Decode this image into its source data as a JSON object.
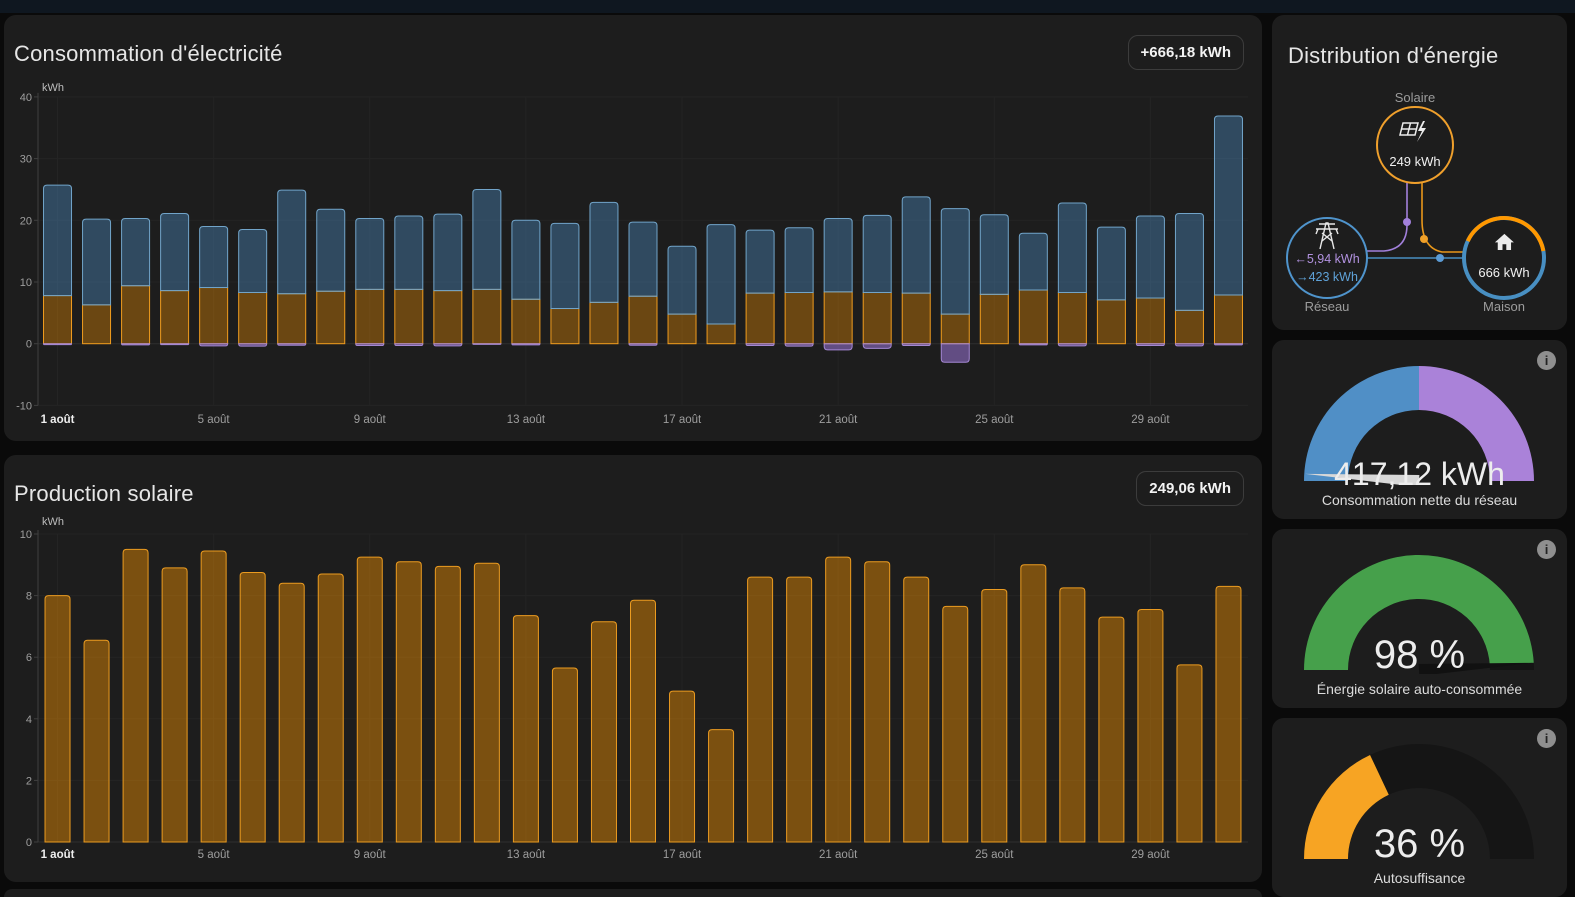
{
  "consumption_panel": {
    "title": "Consommation d'électricité",
    "badge": "+666,18 kWh"
  },
  "solar_panel": {
    "title": "Production solaire",
    "badge": "249,06 kWh"
  },
  "distribution": {
    "title": "Distribution d'énergie",
    "solar": {
      "label": "Solaire",
      "value": "249 kWh"
    },
    "grid": {
      "label": "Réseau",
      "export_arrow": "←",
      "export_value": "5,94 kWh",
      "import_arrow": "→",
      "import_value": "423 kWh"
    },
    "home": {
      "label": "Maison",
      "value": "666 kWh"
    }
  },
  "gauges": [
    {
      "value": "417,12 kWh",
      "label": "Consommation nette du réseau",
      "type": "split",
      "colors": [
        "#508fc6",
        "#aa82d9"
      ],
      "needle": {
        "pct": 0.02,
        "color": "#d8d8d8"
      }
    },
    {
      "value": "98 %",
      "label": "Énergie solaire auto-consommée",
      "type": "fill",
      "pct": 0.98,
      "color": "#46a04b",
      "track": "#141414",
      "needle": {
        "pct": 0.98,
        "color": "#111111"
      }
    },
    {
      "value": "36 %",
      "label": "Autosuffisance",
      "type": "fill",
      "pct": 0.36,
      "color": "#f7a423",
      "track": "#151515"
    }
  ],
  "chart_data": [
    {
      "type": "bar",
      "stacked": true,
      "title": "Consommation d'électricité",
      "unit": "kWh",
      "total_label": "+666,18 kWh",
      "days": 31,
      "ylim": [
        -10,
        40
      ],
      "yticks": [
        40,
        30,
        20,
        10,
        0,
        -10
      ],
      "x_tick_labels": [
        "1 août",
        "5 août",
        "9 août",
        "13 août",
        "17 août",
        "21 août",
        "25 août",
        "29 août"
      ],
      "x_tick_day_indices": [
        0,
        4,
        8,
        12,
        16,
        20,
        24,
        28
      ],
      "series": [
        {
          "name": "solar_self_consumed",
          "stack": "pos",
          "fill": "rgba(255,152,0,0.35)",
          "stroke": "#f09c1e",
          "values": [
            7.8,
            6.3,
            9.4,
            8.6,
            9.1,
            8.3,
            8.1,
            8.5,
            8.8,
            8.8,
            8.6,
            8.8,
            7.2,
            5.7,
            6.7,
            7.7,
            4.8,
            3.2,
            8.2,
            8.3,
            8.4,
            8.3,
            8.2,
            4.8,
            8.0,
            8.7,
            8.3,
            7.1,
            7.4,
            5.4,
            7.9
          ]
        },
        {
          "name": "grid_consumption",
          "stack": "pos",
          "fill": "rgba(77,142,198,0.40)",
          "stroke": "#71a4c9",
          "values": [
            17.9,
            13.9,
            10.9,
            12.5,
            9.9,
            10.2,
            16.8,
            13.3,
            11.5,
            11.9,
            12.4,
            16.2,
            12.8,
            13.8,
            16.2,
            12.0,
            11.0,
            16.1,
            10.2,
            10.5,
            11.9,
            12.5,
            15.6,
            17.1,
            12.9,
            9.2,
            14.5,
            11.8,
            13.3,
            15.7,
            29.0
          ]
        },
        {
          "name": "return_to_grid",
          "stack": "neg",
          "fill": "rgba(155,117,215,0.55)",
          "stroke": "#a487d3",
          "values": [
            0.15,
            0,
            0.2,
            0.15,
            0.35,
            0.4,
            0.25,
            0,
            0.3,
            0.3,
            0.35,
            0.1,
            0.2,
            0,
            0,
            0.25,
            0,
            0,
            0.3,
            0.4,
            1.0,
            0.75,
            0.3,
            3.0,
            0,
            0.2,
            0.35,
            0,
            0.3,
            0.35,
            0.2
          ]
        }
      ]
    },
    {
      "type": "bar",
      "stacked": false,
      "title": "Production solaire",
      "unit": "kWh",
      "total_label": "249,06 kWh",
      "days": 31,
      "ylim": [
        0,
        10
      ],
      "yticks": [
        10,
        8,
        6,
        4,
        2,
        0
      ],
      "x_tick_labels": [
        "1 août",
        "5 août",
        "9 août",
        "13 août",
        "17 août",
        "21 août",
        "25 août",
        "29 août"
      ],
      "x_tick_day_indices": [
        0,
        4,
        8,
        12,
        16,
        20,
        24,
        28
      ],
      "series": [
        {
          "name": "solar_production",
          "stack": "pos",
          "fill": "rgba(255,152,0,0.42)",
          "stroke": "#eb9b20",
          "values": [
            8.0,
            6.55,
            9.5,
            8.9,
            9.45,
            8.75,
            8.4,
            8.7,
            9.25,
            9.1,
            8.95,
            9.05,
            7.35,
            5.65,
            7.15,
            7.85,
            4.9,
            3.65,
            8.6,
            8.6,
            9.25,
            9.1,
            8.6,
            7.65,
            8.2,
            9.0,
            8.25,
            7.3,
            7.55,
            5.75,
            8.3
          ]
        }
      ]
    }
  ]
}
